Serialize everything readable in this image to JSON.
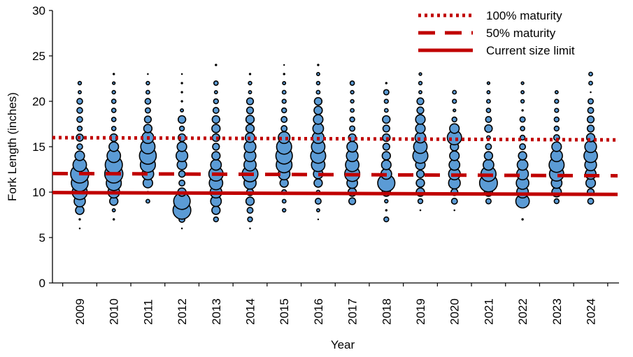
{
  "chart_data": {
    "type": "bubble",
    "title": "",
    "xlabel": "Year",
    "ylabel": "Fork Length (inches)",
    "ylim": [
      0,
      30
    ],
    "yticks": [
      "0",
      "5",
      "10",
      "15",
      "20",
      "25",
      "30"
    ],
    "categories": [
      "2009",
      "2010",
      "2011",
      "2012",
      "2013",
      "2014",
      "2015",
      "2016",
      "2017",
      "2018",
      "2019",
      "2020",
      "2021",
      "2022",
      "2023",
      "2024"
    ],
    "bubble_note": "values are estimated relative abundance (%) per 1-inch length class; bubble area proportional to value",
    "series": [
      {
        "year": "2009",
        "values": {
          "6": 0.1,
          "7": 0.2,
          "8": 3.1,
          "9": 5.5,
          "10": 10,
          "11": 12.5,
          "12": 14.6,
          "13": 8,
          "14": 4,
          "15": 1.4,
          "16": 2.2,
          "17": 1,
          "18": 1.4,
          "19": 1.4,
          "20": 1.4,
          "21": 0.4,
          "22": 0.5
        }
      },
      {
        "year": "2010",
        "values": {
          "7": 0.2,
          "8": 0.4,
          "9": 3,
          "10": 6,
          "11": 10,
          "12": 14.6,
          "13": 13,
          "14": 8,
          "15": 4,
          "16": 2.5,
          "17": 0.8,
          "18": 0.8,
          "19": 0.8,
          "20": 0.8,
          "21": 0.5,
          "22": 0.3,
          "23": 0.2
        }
      },
      {
        "year": "2011",
        "values": {
          "9": 0.6,
          "10": 0.2,
          "11": 4,
          "12": 6,
          "13": 10,
          "14": 12.5,
          "15": 9,
          "16": 6,
          "17": 3,
          "18": 2,
          "19": 1.2,
          "20": 1.4,
          "21": 0.6,
          "22": 0.5,
          "23": 0.1
        }
      },
      {
        "year": "2012",
        "values": {
          "6": 0.1,
          "7": 1.5,
          "8": 14,
          "9": 12,
          "10": 3,
          "11": 1.5,
          "12": 1.8,
          "13": 4,
          "14": 6,
          "15": 4,
          "16": 2.5,
          "17": 1,
          "18": 2.5,
          "19": 0.4,
          "20": 0.2,
          "21": 0.2,
          "22": 0.2,
          "23": 0.1
        }
      },
      {
        "year": "2013",
        "values": {
          "7": 1,
          "8": 3,
          "9": 5,
          "10": 6,
          "11": 8,
          "12": 9,
          "13": 5,
          "14": 3,
          "15": 2,
          "16": 2.5,
          "17": 3,
          "18": 2.5,
          "19": 1.5,
          "20": 1,
          "21": 0.4,
          "22": 0.8,
          "24": 0.2
        }
      },
      {
        "year": "2014",
        "values": {
          "6": 0.1,
          "7": 1,
          "8": 1.5,
          "9": 3,
          "10": 2,
          "11": 6.5,
          "12": 11,
          "13": 6.5,
          "14": 6,
          "15": 6,
          "16": 4,
          "17": 3,
          "18": 3,
          "19": 2,
          "20": 2,
          "21": 0.4,
          "22": 0.5,
          "23": 0.2
        }
      },
      {
        "year": "2015",
        "values": {
          "8": 0.5,
          "9": 0.6,
          "10": 1,
          "11": 3,
          "12": 6,
          "13": 11,
          "14": 12,
          "15": 10,
          "16": 6,
          "17": 1.5,
          "18": 1.5,
          "19": 1,
          "20": 0.7,
          "21": 0.6,
          "22": 0.4,
          "23": 0.2,
          "24": 0.05
        }
      },
      {
        "year": "2016",
        "values": {
          "7": 0.05,
          "8": 0.4,
          "9": 1.5,
          "10": 0.6,
          "11": 3,
          "12": 4,
          "13": 8,
          "14": 10,
          "15": 8,
          "16": 6,
          "17": 5,
          "18": 4,
          "19": 3,
          "20": 2.5,
          "21": 0.6,
          "22": 0.5,
          "23": 0.4,
          "24": 0.2
        }
      },
      {
        "year": "2017",
        "values": {
          "9": 2,
          "10": 3,
          "11": 5,
          "12": 10,
          "13": 8,
          "14": 6,
          "15": 5,
          "16": 2.5,
          "17": 1.2,
          "18": 1,
          "19": 0.6,
          "20": 0.5,
          "21": 0.5,
          "22": 0.8
        }
      },
      {
        "year": "2018",
        "values": {
          "7": 1,
          "8": 0.2,
          "9": 0.5,
          "10": 3,
          "11": 13,
          "12": 5,
          "13": 4,
          "14": 3,
          "15": 2,
          "16": 2.5,
          "17": 2,
          "18": 2.5,
          "19": 0.6,
          "20": 0.7,
          "21": 1.2,
          "22": 0.2
        }
      },
      {
        "year": "2019",
        "values": {
          "8": 0.1,
          "9": 1,
          "10": 3,
          "11": 3,
          "12": 2.5,
          "13": 4,
          "14": 10,
          "15": 8,
          "16": 5,
          "17": 4,
          "18": 4,
          "19": 2,
          "20": 2,
          "21": 0.4,
          "22": 0.5,
          "23": 0.3
        }
      },
      {
        "year": "2020",
        "values": {
          "8": 0.1,
          "9": 1.5,
          "10": 2,
          "11": 6,
          "12": 6,
          "13": 5,
          "14": 4,
          "15": 3,
          "16": 9,
          "17": 4,
          "18": 1,
          "19": 0.3,
          "20": 0.7,
          "21": 0.6
        }
      },
      {
        "year": "2021",
        "values": {
          "9": 1.2,
          "10": 3,
          "11": 14,
          "12": 10,
          "13": 5,
          "14": 3,
          "15": 1.5,
          "16": 0.6,
          "17": 2.5,
          "18": 1.5,
          "19": 0.8,
          "20": 0.6,
          "21": 0.4,
          "22": 0.3
        }
      },
      {
        "year": "2022",
        "values": {
          "7": 0.2,
          "9": 8,
          "10": 6,
          "11": 7,
          "12": 6,
          "13": 5,
          "14": 3,
          "15": 1.5,
          "16": 1,
          "17": 0.8,
          "18": 1.2,
          "19": 0.2,
          "20": 0.5,
          "21": 0.4,
          "22": 0.3
        }
      },
      {
        "year": "2023",
        "values": {
          "9": 1,
          "10": 4,
          "11": 5,
          "12": 9,
          "13": 10,
          "14": 6,
          "15": 4,
          "16": 1.5,
          "17": 1,
          "18": 1,
          "19": 0.7,
          "20": 0.7,
          "21": 0.4
        }
      },
      {
        "year": "2024",
        "values": {
          "9": 1.5,
          "10": 2,
          "11": 4,
          "12": 5,
          "13": 6,
          "14": 8,
          "15": 6,
          "16": 3,
          "17": 2,
          "18": 2,
          "19": 1.5,
          "20": 1.2,
          "21": 0.1,
          "22": 0.6,
          "23": 0.6
        }
      }
    ],
    "reference_lines": [
      {
        "name": "100% maturity",
        "style": "dotted",
        "y_start": 16.0,
        "y_end": 15.75
      },
      {
        "name": "50% maturity",
        "style": "dashed",
        "y_start": 12.05,
        "y_end": 11.8
      },
      {
        "name": "Current size limit",
        "style": "solid",
        "y_start": 9.95,
        "y_end": 9.75
      }
    ],
    "legend_position": "top-right",
    "grid": false,
    "colors": {
      "bubble_fill": "#5b9bd5",
      "bubble_stroke": "#000000",
      "line": "#c00000"
    }
  }
}
